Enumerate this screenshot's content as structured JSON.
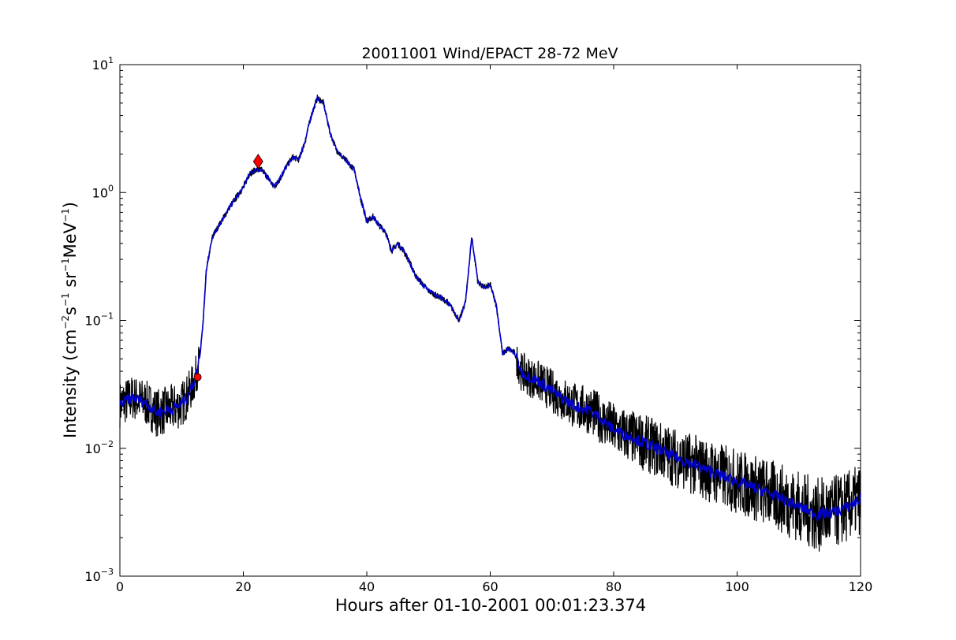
{
  "chart_data": {
    "type": "line",
    "title": "20011001 Wind/EPACT 28-72 MeV",
    "xlabel": "Hours after 01-10-2001 00:01:23.374",
    "ylabel": {
      "prefix": "Intensity (cm",
      "exp1": "−2",
      "mid1": "s",
      "exp2": "−1",
      "mid2": " sr",
      "exp3": "−1",
      "mid3": "MeV",
      "exp4": "−1",
      "suffix": ")"
    },
    "xlim": [
      0,
      120
    ],
    "ylim": [
      0.001,
      10
    ],
    "yscale": "log",
    "grid": false,
    "x_ticks": [
      0,
      20,
      40,
      60,
      80,
      100,
      120
    ],
    "x_tick_labels": [
      "0",
      "20",
      "40",
      "60",
      "80",
      "100",
      "120"
    ],
    "y_ticks": [
      0.001,
      0.01,
      0.1,
      1,
      10
    ],
    "y_tick_labels": [
      {
        "base": "10",
        "exp": "−3"
      },
      {
        "base": "10",
        "exp": "−2"
      },
      {
        "base": "10",
        "exp": "−1"
      },
      {
        "base": "10",
        "exp": "0"
      },
      {
        "base": "10",
        "exp": "1"
      }
    ],
    "series": [
      {
        "color": "#000000",
        "style": "raw-noisy",
        "x": [
          0,
          2,
          4,
          6,
          8,
          10,
          11,
          12,
          12.5,
          13,
          13.5,
          14,
          15,
          16,
          18,
          20,
          21,
          22,
          23,
          24,
          25,
          26,
          27,
          28,
          29,
          30,
          31,
          32,
          33,
          34,
          35,
          36,
          37,
          38,
          39,
          40,
          41,
          42,
          43,
          44,
          45,
          46,
          47,
          48,
          50,
          52,
          53,
          54,
          55,
          56,
          57,
          58,
          59,
          60,
          61,
          62,
          63,
          64,
          65,
          66,
          68,
          70,
          72,
          74,
          76,
          78,
          80,
          85,
          90,
          95,
          100,
          105,
          110,
          113,
          116,
          118,
          120
        ],
        "y": [
          0.022,
          0.025,
          0.023,
          0.019,
          0.02,
          0.022,
          0.026,
          0.033,
          0.04,
          0.055,
          0.1,
          0.25,
          0.45,
          0.55,
          0.8,
          1.1,
          1.4,
          1.5,
          1.5,
          1.3,
          1.1,
          1.3,
          1.6,
          1.9,
          1.8,
          2.5,
          4.0,
          5.5,
          5.0,
          3.0,
          2.2,
          1.9,
          1.7,
          1.5,
          0.9,
          0.6,
          0.65,
          0.55,
          0.5,
          0.35,
          0.4,
          0.35,
          0.28,
          0.22,
          0.17,
          0.15,
          0.14,
          0.12,
          0.1,
          0.14,
          0.45,
          0.2,
          0.18,
          0.19,
          0.13,
          0.055,
          0.06,
          0.055,
          0.04,
          0.037,
          0.033,
          0.028,
          0.024,
          0.021,
          0.02,
          0.017,
          0.014,
          0.011,
          0.0085,
          0.0068,
          0.0055,
          0.0045,
          0.0035,
          0.003,
          0.0032,
          0.0035,
          0.004
        ]
      },
      {
        "color": "#0000cc",
        "style": "smoothed",
        "x": [
          0,
          2,
          4,
          6,
          8,
          10,
          11,
          12,
          12.5,
          13,
          13.5,
          14,
          15,
          16,
          18,
          20,
          21,
          22,
          23,
          24,
          25,
          26,
          27,
          28,
          29,
          30,
          31,
          32,
          33,
          34,
          35,
          36,
          37,
          38,
          39,
          40,
          41,
          42,
          43,
          44,
          45,
          46,
          47,
          48,
          50,
          52,
          53,
          54,
          55,
          56,
          57,
          58,
          59,
          60,
          61,
          62,
          63,
          64,
          65,
          66,
          68,
          70,
          72,
          74,
          76,
          78,
          80,
          85,
          90,
          95,
          100,
          105,
          110,
          113,
          116,
          118,
          120
        ],
        "y": [
          0.022,
          0.025,
          0.023,
          0.019,
          0.02,
          0.022,
          0.026,
          0.033,
          0.04,
          0.055,
          0.1,
          0.25,
          0.45,
          0.55,
          0.8,
          1.1,
          1.4,
          1.5,
          1.5,
          1.3,
          1.1,
          1.3,
          1.6,
          1.9,
          1.8,
          2.5,
          4.0,
          5.5,
          5.0,
          3.0,
          2.2,
          1.9,
          1.7,
          1.5,
          0.9,
          0.6,
          0.65,
          0.55,
          0.5,
          0.35,
          0.4,
          0.35,
          0.28,
          0.22,
          0.17,
          0.15,
          0.14,
          0.12,
          0.1,
          0.14,
          0.45,
          0.2,
          0.18,
          0.19,
          0.13,
          0.055,
          0.06,
          0.055,
          0.04,
          0.037,
          0.033,
          0.028,
          0.024,
          0.021,
          0.02,
          0.017,
          0.014,
          0.011,
          0.0085,
          0.0068,
          0.0055,
          0.0045,
          0.0035,
          0.003,
          0.0032,
          0.0035,
          0.004
        ]
      }
    ],
    "markers": [
      {
        "shape": "circle",
        "color": "#ff0000",
        "x": 12.6,
        "y": 0.036
      },
      {
        "shape": "diamond",
        "color": "#ff0000",
        "x": 22.4,
        "y": 1.75
      }
    ]
  }
}
